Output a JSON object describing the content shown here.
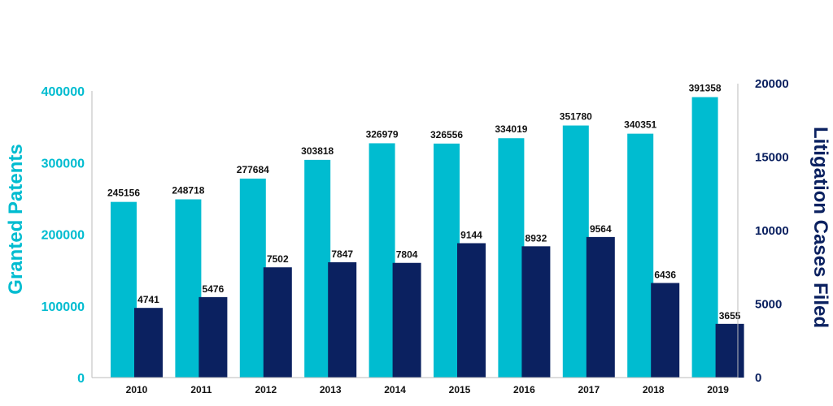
{
  "chart_data": {
    "type": "bar",
    "categories": [
      "2010",
      "2011",
      "2012",
      "2013",
      "2014",
      "2015",
      "2016",
      "2017",
      "2018",
      "2019"
    ],
    "series": [
      {
        "name": "Granted Patents",
        "axis": "left",
        "color": "#00BCD0",
        "values": [
          245156,
          248718,
          277684,
          303818,
          326979,
          326556,
          334019,
          351780,
          340351,
          391358
        ]
      },
      {
        "name": "Litigation Cases Filed",
        "axis": "right",
        "color": "#0B2160",
        "values": [
          4741,
          5476,
          7502,
          7847,
          7804,
          9144,
          8932,
          9564,
          6436,
          3655
        ]
      }
    ],
    "ylabel": "Granted Patents",
    "y2label": "Litigation Cases Filed",
    "ylim": [
      0,
      400000
    ],
    "y2lim": [
      0,
      20000
    ],
    "yticks": [
      "0",
      "100000",
      "200000",
      "300000",
      "400000"
    ],
    "y2ticks": [
      "0",
      "5000",
      "10000",
      "15000",
      "20000"
    ],
    "ylabel_color": "#00BCD0",
    "y2label_color": "#0B2160",
    "grid": false,
    "legend": "none"
  }
}
